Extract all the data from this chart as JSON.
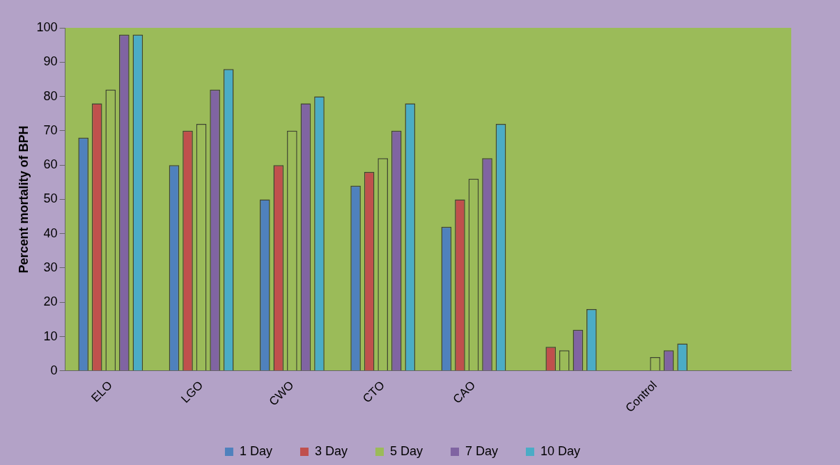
{
  "chart_data": {
    "type": "bar",
    "ylabel": "Percent mortality of BPH",
    "categories": [
      "ELO",
      "LGO",
      "CWO",
      "CTO",
      "CAO",
      null,
      "Control",
      null
    ],
    "series": [
      {
        "name": "1 Day",
        "color": "#4f81bd",
        "values": [
          68,
          60,
          50,
          54,
          42,
          0,
          0,
          null
        ]
      },
      {
        "name": "3 Day",
        "color": "#c0504d",
        "values": [
          78,
          70,
          60,
          58,
          50,
          7,
          0,
          null
        ]
      },
      {
        "name": "5 Day",
        "color": "#9bbb59",
        "values": [
          82,
          72,
          70,
          62,
          56,
          6,
          4,
          null
        ]
      },
      {
        "name": "7 Day",
        "color": "#8064a2",
        "values": [
          98,
          82,
          78,
          70,
          62,
          12,
          6,
          null
        ]
      },
      {
        "name": "10 Day",
        "color": "#4bacc6",
        "values": [
          98,
          88,
          80,
          78,
          72,
          18,
          8,
          null
        ]
      }
    ],
    "ylim": [
      0,
      100
    ],
    "yticks": [
      0,
      10,
      20,
      30,
      40,
      50,
      60,
      70,
      80,
      90,
      100
    ],
    "grid": false,
    "legend": "bottom"
  }
}
